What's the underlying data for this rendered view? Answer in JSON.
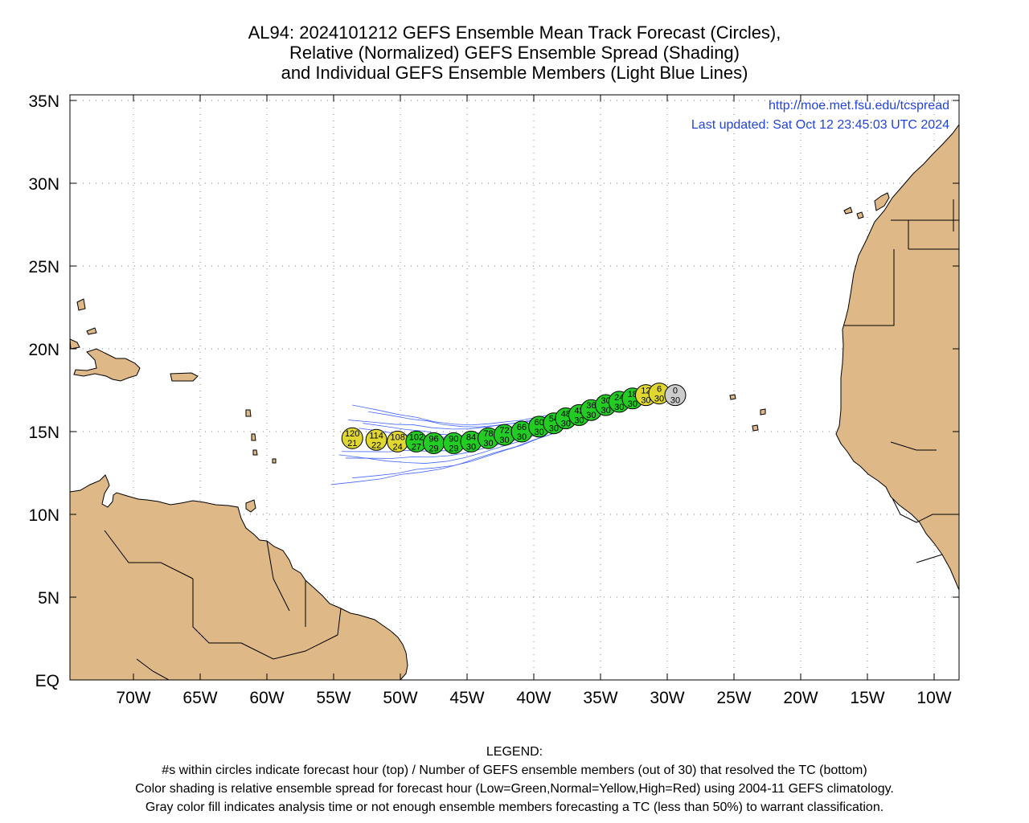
{
  "title": {
    "line1": "AL94: 2024101212 GEFS Ensemble Mean Track Forecast (Circles),",
    "line2": "Relative (Normalized) GEFS Ensemble Spread (Shading)",
    "line3": "and Individual GEFS Ensemble Members (Light Blue Lines)"
  },
  "info": {
    "url": "http://moe.met.fsu.edu/tcspread",
    "updated": "Last updated: Sat Oct 12 23:45:03 UTC 2024"
  },
  "axes": {
    "lat_labels": [
      "EQ",
      "5N",
      "10N",
      "15N",
      "20N",
      "25N",
      "30N",
      "35N"
    ],
    "lon_labels": [
      "70W",
      "65W",
      "60W",
      "55W",
      "50W",
      "45W",
      "40W",
      "35W",
      "30W",
      "25W",
      "20W",
      "15W",
      "10W"
    ]
  },
  "colors": {
    "land": "#deb887",
    "member_lines": "#4466ff",
    "low_spread": "#22cc22",
    "normal_spread": "#e0d830",
    "gray_fill": "#cccccc"
  },
  "track": [
    {
      "hour": "0",
      "members": "30",
      "lon": -29.4,
      "lat": 17.2,
      "spread": "gray"
    },
    {
      "hour": "6",
      "members": "30",
      "lon": -30.6,
      "lat": 17.3,
      "spread": "normal"
    },
    {
      "hour": "12",
      "members": "30",
      "lon": -31.6,
      "lat": 17.2,
      "spread": "normal"
    },
    {
      "hour": "18",
      "members": "30",
      "lon": -32.6,
      "lat": 17.0,
      "spread": "low"
    },
    {
      "hour": "24",
      "members": "30",
      "lon": -33.6,
      "lat": 16.8,
      "spread": "low"
    },
    {
      "hour": "30",
      "members": "30",
      "lon": -34.6,
      "lat": 16.6,
      "spread": "low"
    },
    {
      "hour": "36",
      "members": "30",
      "lon": -35.7,
      "lat": 16.3,
      "spread": "low"
    },
    {
      "hour": "42",
      "members": "30",
      "lon": -36.6,
      "lat": 16.0,
      "spread": "low"
    },
    {
      "hour": "48",
      "members": "30",
      "lon": -37.6,
      "lat": 15.8,
      "spread": "low"
    },
    {
      "hour": "54",
      "members": "30",
      "lon": -38.5,
      "lat": 15.5,
      "spread": "low"
    },
    {
      "hour": "60",
      "members": "30",
      "lon": -39.6,
      "lat": 15.3,
      "spread": "low"
    },
    {
      "hour": "66",
      "members": "30",
      "lon": -40.9,
      "lat": 15.0,
      "spread": "low"
    },
    {
      "hour": "72",
      "members": "30",
      "lon": -42.2,
      "lat": 14.8,
      "spread": "low"
    },
    {
      "hour": "78",
      "members": "30",
      "lon": -43.4,
      "lat": 14.6,
      "spread": "low"
    },
    {
      "hour": "84",
      "members": "30",
      "lon": -44.7,
      "lat": 14.4,
      "spread": "low"
    },
    {
      "hour": "90",
      "members": "29",
      "lon": -46.0,
      "lat": 14.3,
      "spread": "low"
    },
    {
      "hour": "96",
      "members": "29",
      "lon": -47.5,
      "lat": 14.3,
      "spread": "low"
    },
    {
      "hour": "102",
      "members": "27",
      "lon": -48.8,
      "lat": 14.4,
      "spread": "low"
    },
    {
      "hour": "108",
      "members": "24",
      "lon": -50.2,
      "lat": 14.4,
      "spread": "normal"
    },
    {
      "hour": "114",
      "members": "22",
      "lon": -51.8,
      "lat": 14.5,
      "spread": "normal"
    },
    {
      "hour": "120",
      "members": "21",
      "lon": -53.6,
      "lat": 14.6,
      "spread": "normal"
    }
  ],
  "legend": {
    "heading": "LEGEND:",
    "line1": "#s within circles indicate forecast hour (top) / Number of GEFS ensemble members (out of 30) that resolved the TC (bottom)",
    "line2": "Color shading is relative ensemble spread for forecast hour (Low=Green,Normal=Yellow,High=Red) using 2004-11 GEFS climatology.",
    "line3": "Gray color fill indicates analysis time or not enough ensemble members forecasting a TC (less than 50%) to warrant classification."
  }
}
